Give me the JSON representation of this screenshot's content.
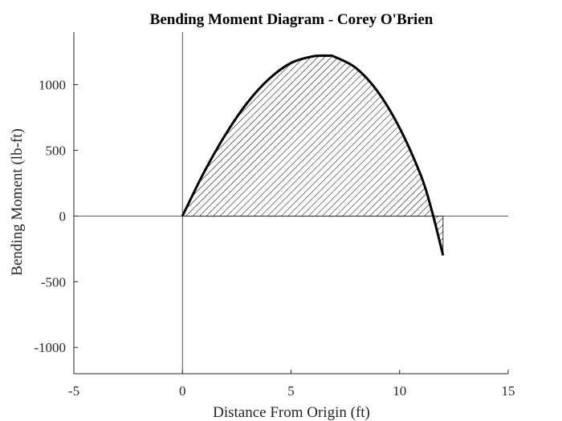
{
  "chart_data": {
    "type": "area",
    "title": "Bending Moment Diagram - Corey O'Brien",
    "xlabel": "Distance From Origin (ft)",
    "ylabel": "Bending Moment (lb-ft)",
    "xlim": [
      -5,
      15
    ],
    "ylim": [
      -1200,
      1400
    ],
    "xticks": [
      -5,
      0,
      5,
      10,
      15
    ],
    "xtick_labels": [
      "-5",
      "0",
      "5",
      "10",
      "15"
    ],
    "yticks": [
      -1000,
      -500,
      0,
      500,
      1000
    ],
    "ytick_labels": [
      "-1000",
      "-500",
      "0",
      "500",
      "1000"
    ],
    "grid": false,
    "fill": "hatched",
    "series": [
      {
        "x": [
          0,
          1,
          2,
          3,
          4,
          5,
          6,
          6.7,
          7,
          8,
          9,
          10,
          11,
          11.5,
          12
        ],
        "y": [
          0,
          335,
          625,
          865,
          1045,
          1165,
          1215,
          1220,
          1212,
          1125,
          945,
          670,
          300,
          30,
          -300
        ]
      }
    ]
  }
}
